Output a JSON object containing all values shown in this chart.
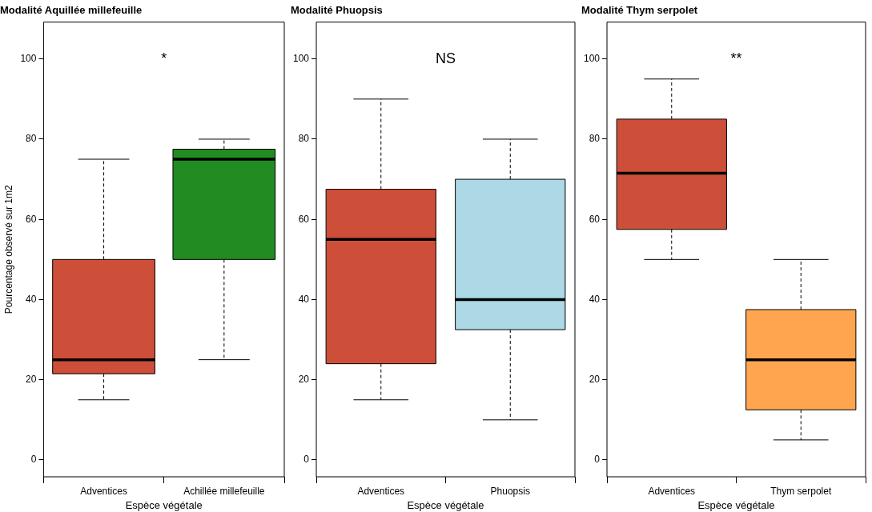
{
  "chart_data": [
    {
      "type": "box",
      "title": "Modalité Aquillée millefeuille",
      "xlabel": "Espèce végétale",
      "ylabel": "Pourcentage observé sur 1m2",
      "categories": [
        "Adventices",
        "Achillée millefeuille"
      ],
      "colors": [
        "#cd4f39",
        "#228b22"
      ],
      "boxes": [
        {
          "low": 15,
          "q1": 21.5,
          "median": 25,
          "q3": 50,
          "high": 75
        },
        {
          "low": 25,
          "q1": 50,
          "median": 75,
          "q3": 77.5,
          "high": 80
        }
      ],
      "ylim": [
        -4.2,
        109.2
      ],
      "yticks": [
        0,
        20,
        40,
        60,
        80,
        100
      ],
      "annotations": [
        "*"
      ],
      "grid": false,
      "legend": false
    },
    {
      "type": "box",
      "title": "Modalité Phuopsis",
      "xlabel": "Espèce végétale",
      "categories": [
        "Adventices",
        "Phuopsis"
      ],
      "colors": [
        "#cd4f39",
        "#add8e6"
      ],
      "boxes": [
        {
          "low": 15,
          "q1": 24,
          "median": 55,
          "q3": 67.5,
          "high": 90
        },
        {
          "low": 10,
          "q1": 32.5,
          "median": 40,
          "q3": 70,
          "high": 80
        }
      ],
      "ylim": [
        -4.2,
        109.2
      ],
      "yticks": [
        0,
        20,
        40,
        60,
        80,
        100
      ],
      "annotations": [
        "NS"
      ],
      "grid": false,
      "legend": false
    },
    {
      "type": "box",
      "title": "Modalité Thym serpolet",
      "xlabel": "Espèce végétale",
      "categories": [
        "Adventices",
        "Thym serpolet"
      ],
      "colors": [
        "#cd4f39",
        "#ffa54f"
      ],
      "boxes": [
        {
          "low": 50,
          "q1": 57.5,
          "median": 71.5,
          "q3": 85,
          "high": 95
        },
        {
          "low": 5,
          "q1": 12.5,
          "median": 25,
          "q3": 37.5,
          "high": 50
        }
      ],
      "ylim": [
        -4.2,
        109.2
      ],
      "yticks": [
        0,
        20,
        40,
        60,
        80,
        100
      ],
      "annotations": [
        "**"
      ],
      "grid": false,
      "legend": false
    }
  ]
}
